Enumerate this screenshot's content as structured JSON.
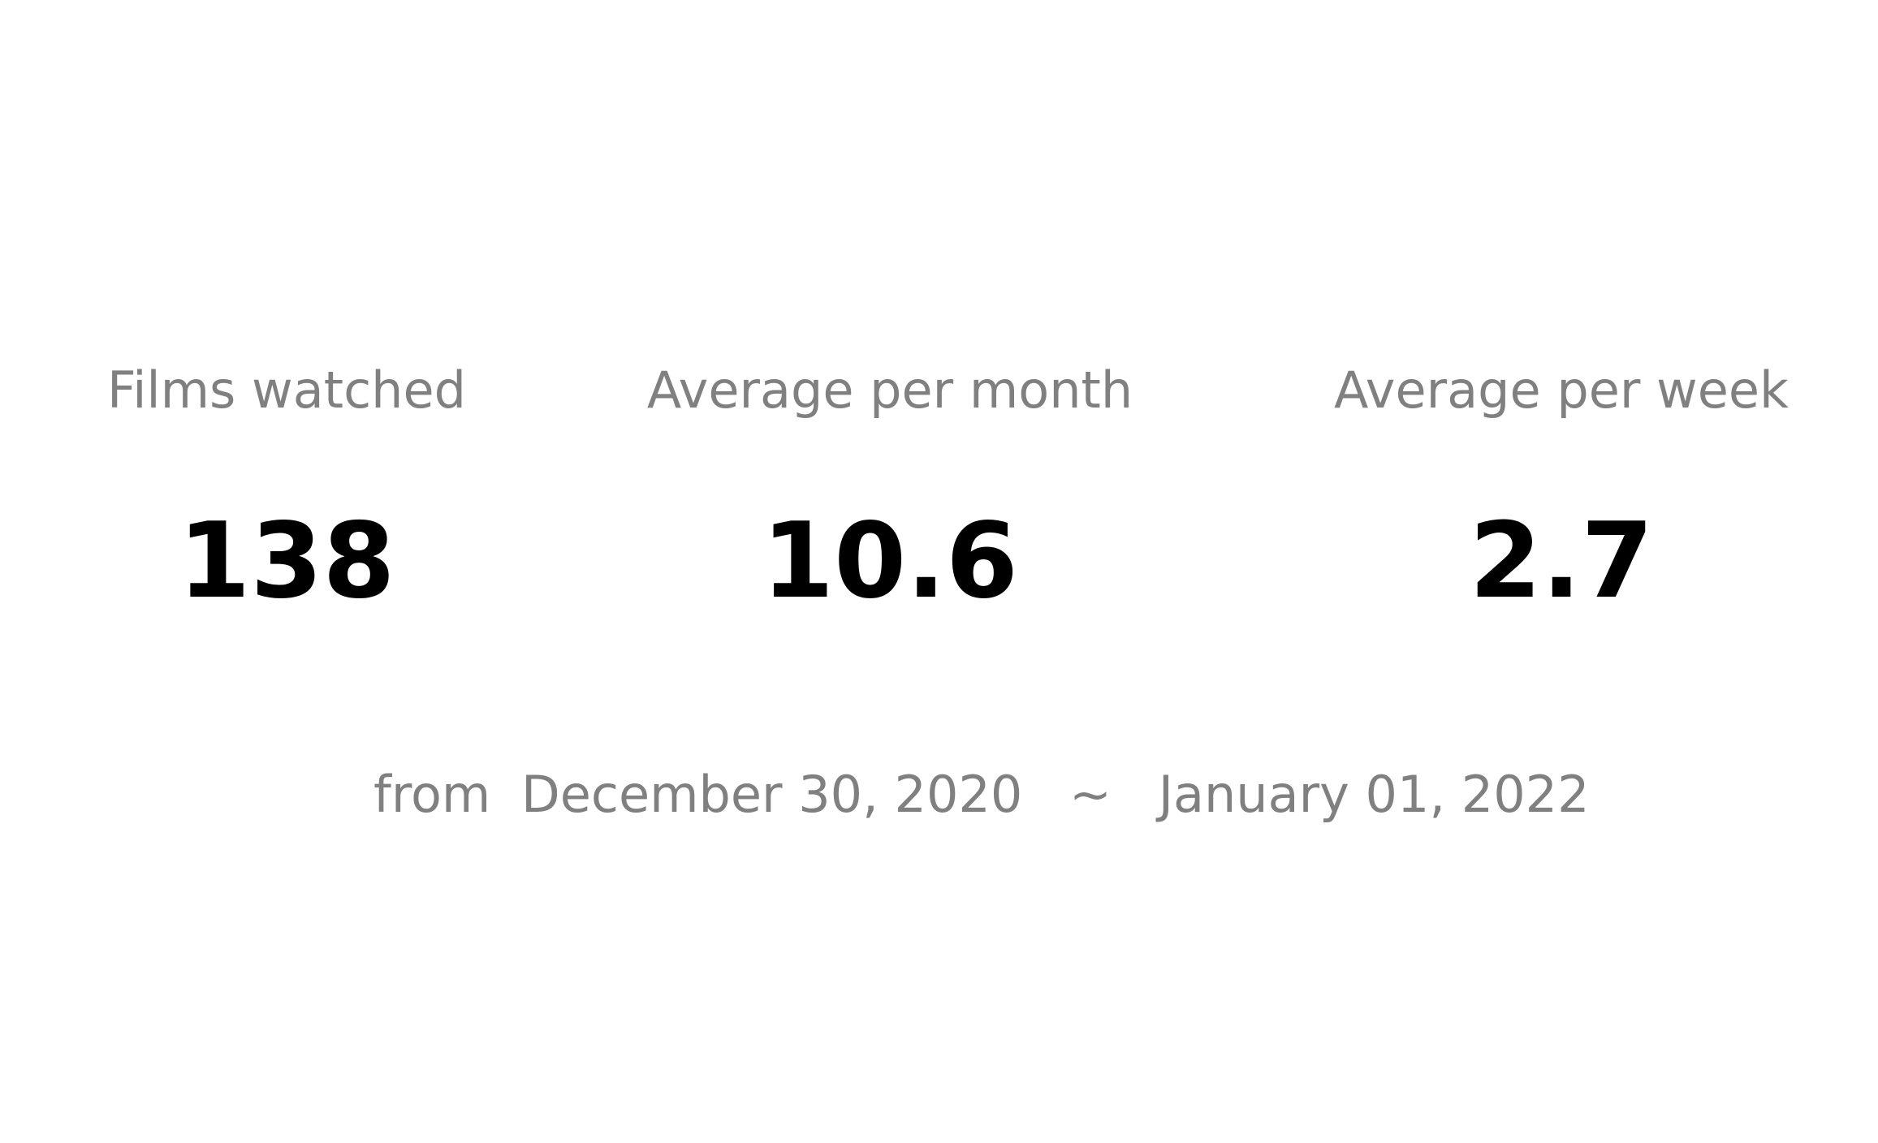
{
  "stats": [
    {
      "label": "Films watched",
      "value": "138"
    },
    {
      "label": "Average per month",
      "value": "10.6"
    },
    {
      "label": "Average per week",
      "value": "2.7"
    }
  ],
  "range": {
    "prefix": "from",
    "start": "December 30, 2020",
    "separator": "~",
    "end": "January 01, 2022"
  },
  "colors": {
    "label": "#808080",
    "value": "#000000",
    "background": "#ffffff"
  }
}
